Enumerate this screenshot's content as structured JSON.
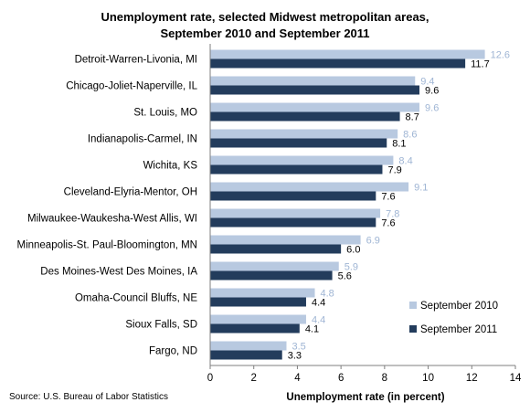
{
  "chart_data": {
    "type": "bar",
    "orientation": "horizontal",
    "title_line1": "Unemployment rate, selected Midwest metropolitan areas,",
    "title_line2": "September 2010 and September 2011",
    "xlabel": "Unemployment rate (in percent)",
    "ylabel": "",
    "xlim": [
      0,
      14
    ],
    "xticks": [
      "0",
      "2",
      "4",
      "6",
      "8",
      "10",
      "12",
      "14"
    ],
    "categories": [
      "Detroit-Warren-Livonia, MI",
      "Chicago-Joliet-Naperville, IL",
      "St. Louis, MO",
      "Indianapolis-Carmel, IN",
      "Wichita, KS",
      "Cleveland-Elyria-Mentor, OH",
      "Milwaukee-Waukesha-West Allis, WI",
      "Minneapolis-St. Paul-Bloomington,  MN",
      "Des Moines-West Des Moines, IA",
      "Omaha-Council Bluffs, NE",
      "Sioux Falls, SD",
      "Fargo, ND"
    ],
    "series": [
      {
        "name": "September 2010",
        "color": "#b8c9e0",
        "label_color": "#9fb5d4",
        "values": [
          12.6,
          9.4,
          9.6,
          8.6,
          8.4,
          9.1,
          7.8,
          6.9,
          5.9,
          4.8,
          4.4,
          3.5
        ],
        "labels": [
          "12.6",
          "9.4",
          "9.6",
          "8.6",
          "8.4",
          "9.1",
          "7.8",
          "6.9",
          "5.9",
          "4.8",
          "4.4",
          "3.5"
        ]
      },
      {
        "name": "September 2011",
        "color": "#233c5c",
        "label_color": "#000000",
        "values": [
          11.7,
          9.6,
          8.7,
          8.1,
          7.9,
          7.6,
          7.6,
          6.0,
          5.6,
          4.4,
          4.1,
          3.3
        ],
        "labels": [
          "11.7",
          "9.6",
          "8.7",
          "8.1",
          "7.9",
          "7.6",
          "7.6",
          "6.0",
          "5.6",
          "4.4",
          "4.1",
          "3.3"
        ]
      }
    ],
    "legend_position": "bottom-right",
    "grid": false,
    "source": "Source: U.S. Bureau of Labor Statistics"
  }
}
